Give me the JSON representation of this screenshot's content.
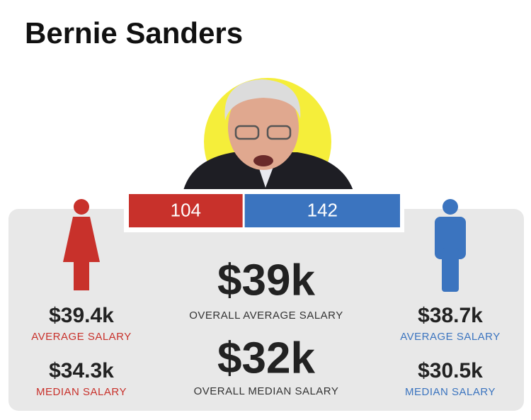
{
  "title": "Bernie Sanders",
  "staff": {
    "female": 104,
    "male": 142,
    "female_color": "#c8312b",
    "male_color": "#3b74bf"
  },
  "female": {
    "average": "$39.4k",
    "average_label": "AVERAGE SALARY",
    "median": "$34.3k",
    "median_label": "MEDIAN SALARY"
  },
  "overall": {
    "average": "$39k",
    "average_label": "OVERALL AVERAGE SALARY",
    "median": "$32k",
    "median_label": "OVERALL MEDIAN SALARY"
  },
  "male": {
    "average": "$38.7k",
    "average_label": "AVERAGE SALARY",
    "median": "$30.5k",
    "median_label": "MEDIAN SALARY"
  }
}
